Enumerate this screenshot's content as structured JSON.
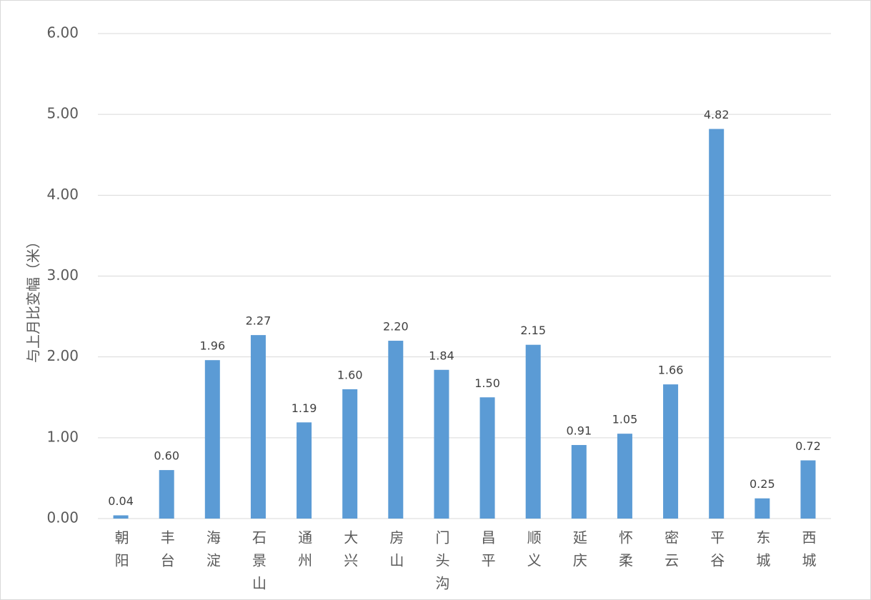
{
  "chart_data": {
    "type": "bar",
    "y_label": "与上月比变幅（米）",
    "categories": [
      "朝阳",
      "丰台",
      "海淀",
      "石景山",
      "通州",
      "大兴",
      "房山",
      "门头沟",
      "昌平",
      "顺义",
      "延庆",
      "怀柔",
      "密云",
      "平谷",
      "东城",
      "西城"
    ],
    "values": [
      0.04,
      0.6,
      1.96,
      2.27,
      1.19,
      1.6,
      2.2,
      1.84,
      1.5,
      2.15,
      0.91,
      1.05,
      1.66,
      4.82,
      0.25,
      0.72
    ],
    "value_labels": [
      "0.04",
      "0.60",
      "1.96",
      "2.27",
      "1.19",
      "1.60",
      "2.20",
      "1.84",
      "1.50",
      "2.15",
      "0.91",
      "1.05",
      "1.66",
      "4.82",
      "0.25",
      "0.72"
    ],
    "color": "#5b9bd5",
    "ylim": [
      0,
      6
    ],
    "yticks": [
      {
        "value": 0,
        "label": "0.00"
      },
      {
        "value": 1,
        "label": "1.00"
      },
      {
        "value": 2,
        "label": "2.00"
      },
      {
        "value": 3,
        "label": "3.00"
      },
      {
        "value": 4,
        "label": "4.00"
      },
      {
        "value": 5,
        "label": "5.00"
      },
      {
        "value": 6,
        "label": "6.00"
      }
    ],
    "grid": true
  }
}
